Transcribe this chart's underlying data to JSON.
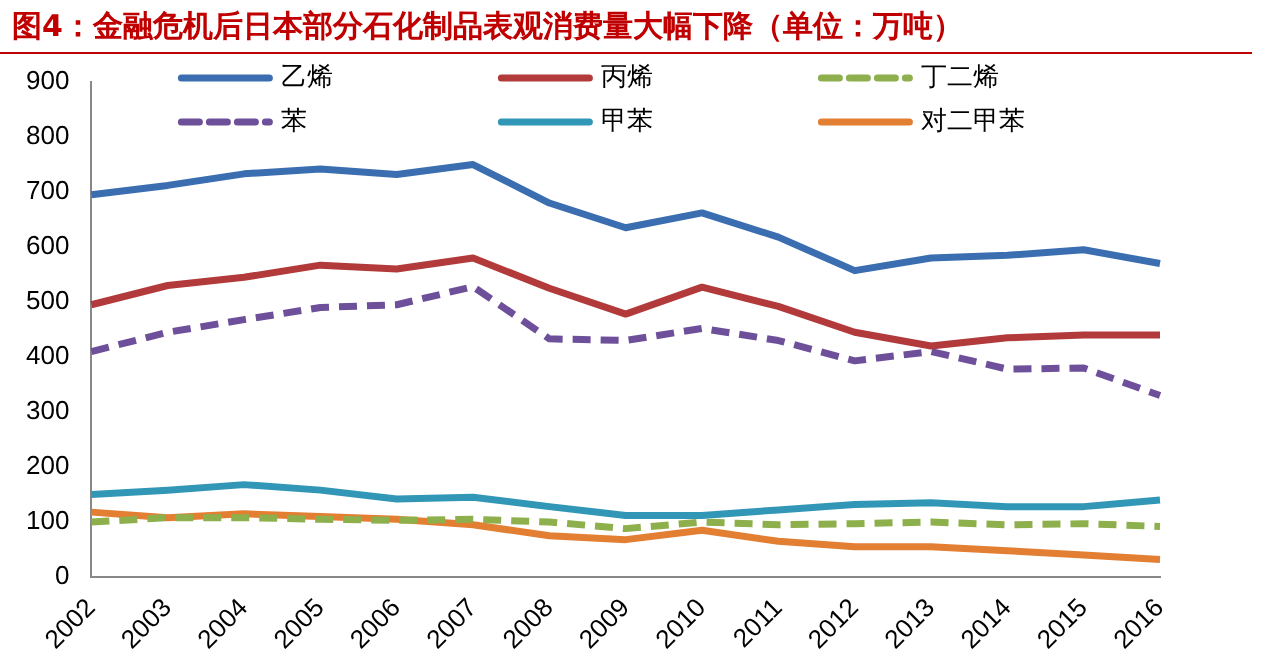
{
  "chart_data": {
    "type": "line",
    "title": "图4：金融危机后日本部分石化制品表观消费量大幅下降（单位：万吨）",
    "categories": [
      "2002",
      "2003",
      "2004",
      "2005",
      "2006",
      "2007",
      "2008",
      "2009",
      "2010",
      "2011",
      "2012",
      "2013",
      "2014",
      "2015",
      "2016"
    ],
    "series": [
      {
        "name": "乙烯",
        "color": "#3a6eb0",
        "values": [
          695,
          712,
          733,
          742,
          732,
          750,
          680,
          635,
          662,
          618,
          557,
          580,
          585,
          595,
          570
        ]
      },
      {
        "name": "丙烯",
        "color": "#b23a3a",
        "values": [
          495,
          530,
          545,
          567,
          560,
          580,
          525,
          478,
          527,
          492,
          445,
          420,
          435,
          440,
          440
        ]
      },
      {
        "name": "丁二烯",
        "color": "#8db04c",
        "line_style": "dashed",
        "values": [
          100,
          108,
          108,
          105,
          103,
          105,
          100,
          88,
          100,
          95,
          97,
          100,
          95,
          97,
          92
        ]
      },
      {
        "name": "苯",
        "color": "#6d4f9a",
        "line_style": "dashed",
        "values": [
          410,
          445,
          468,
          490,
          495,
          528,
          433,
          430,
          452,
          430,
          393,
          410,
          378,
          380,
          330
        ]
      },
      {
        "name": "甲苯",
        "color": "#3297b6",
        "values": [
          150,
          158,
          168,
          158,
          142,
          145,
          128,
          112,
          112,
          122,
          132,
          135,
          128,
          128,
          140
        ]
      },
      {
        "name": "对二甲苯",
        "color": "#e37f32",
        "values": [
          118,
          108,
          115,
          110,
          105,
          95,
          75,
          68,
          85,
          65,
          55,
          55,
          48,
          40,
          32
        ]
      }
    ],
    "ylim": [
      0,
      900
    ],
    "yticks": [
      0,
      100,
      200,
      300,
      400,
      500,
      600,
      700,
      800,
      900
    ],
    "grid": false,
    "legend": "top",
    "marker": "none",
    "line_style": "solid"
  }
}
